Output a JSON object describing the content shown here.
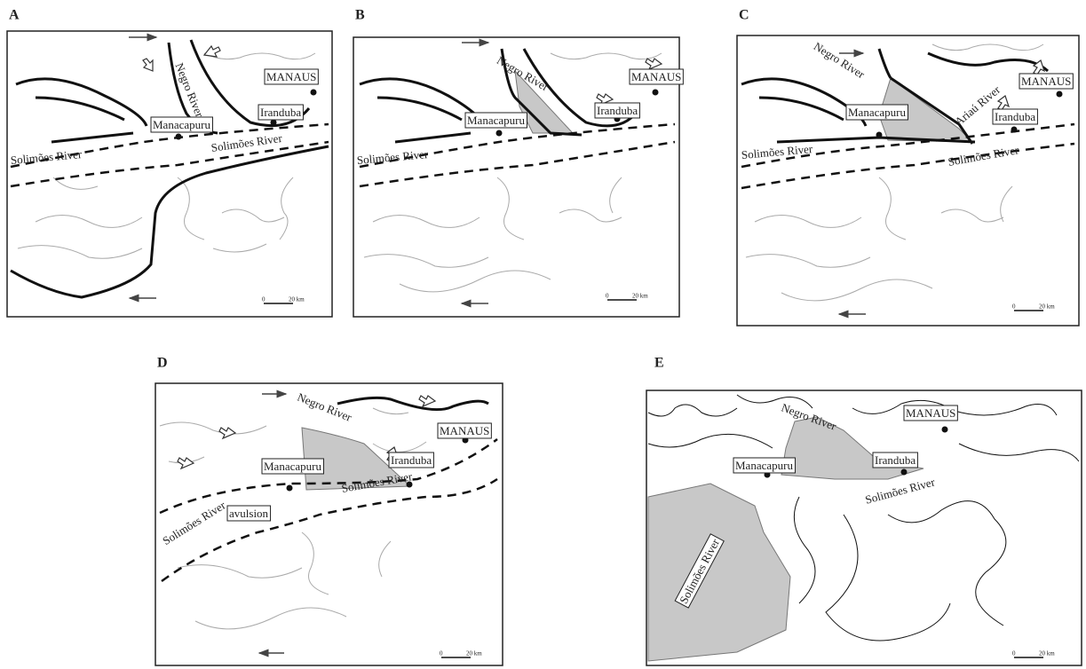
{
  "panels": [
    {
      "letter": "A",
      "labels": [
        "MANAUS",
        "Iranduba",
        "Manacapuru",
        "Negro River",
        "Solimões River",
        "Solimões River"
      ],
      "scale_start": "0",
      "scale_end": "20 km"
    },
    {
      "letter": "B",
      "labels": [
        "MANAUS",
        "Iranduba",
        "Manacapuru",
        "Negro River",
        "Solimões River"
      ],
      "scale_start": "0",
      "scale_end": "20 km"
    },
    {
      "letter": "C",
      "labels": [
        "MANAUS",
        "Iranduba",
        "Manacapuru",
        "Negro River",
        "Ariaú River",
        "Solimões River",
        "Solimões River"
      ],
      "scale_start": "0",
      "scale_end": "20 km"
    },
    {
      "letter": "D",
      "labels": [
        "MANAUS",
        "Iranduba",
        "Manacapuru",
        "Negro River",
        "Solimões River",
        "Solimões River",
        "avulsion"
      ],
      "scale_start": "0",
      "scale_end": "20 km"
    },
    {
      "letter": "E",
      "labels": [
        "MANAUS",
        "Iranduba",
        "Manacapuru",
        "Negro River",
        "Solimões River",
        "Solimões River"
      ],
      "scale_start": "0",
      "scale_end": "20 km"
    }
  ]
}
